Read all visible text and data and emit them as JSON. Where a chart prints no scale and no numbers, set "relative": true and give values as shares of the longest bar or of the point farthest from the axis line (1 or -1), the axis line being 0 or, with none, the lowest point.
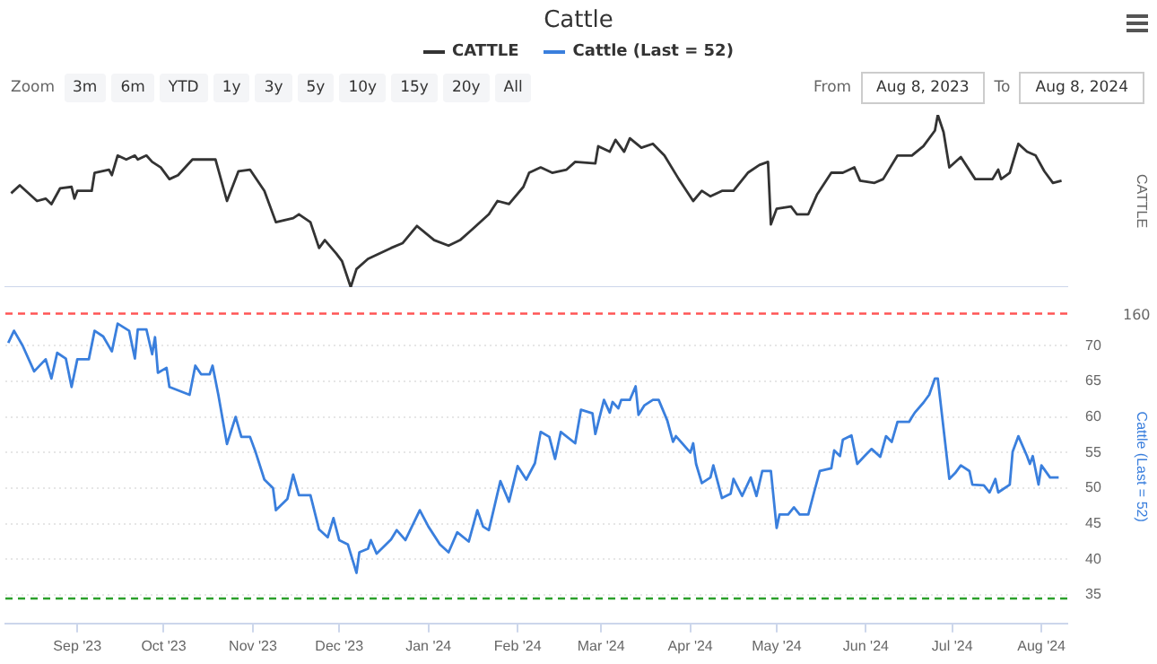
{
  "chart_data": [
    {
      "type": "line",
      "title": "Cattle",
      "legend": "top",
      "relative": true,
      "tick_labels": false,
      "marker": "none",
      "ylabel": "CATTLE",
      "annotations": [
        "Zoom",
        "3m",
        "6m",
        "YTD",
        "1y",
        "3y",
        "5y",
        "10y",
        "15y",
        "20y",
        "All",
        "From",
        "Aug 8, 2023",
        "To",
        "Aug 8, 2024"
      ],
      "xlim": [
        "2023-08-07",
        "2024-08-10"
      ],
      "x": [
        "2023-08-09",
        "2023-08-12",
        "2023-08-18",
        "2023-08-21",
        "2023-08-23",
        "2023-08-26",
        "2023-08-30",
        "2023-08-31",
        "2023-09-01",
        "2023-09-06",
        "2023-09-07",
        "2023-09-12",
        "2023-09-13",
        "2023-09-15",
        "2023-09-18",
        "2023-09-21",
        "2023-09-22",
        "2023-09-25",
        "2023-09-27",
        "2023-09-30",
        "2023-10-03",
        "2023-10-06",
        "2023-10-11",
        "2023-10-19",
        "2023-10-23",
        "2023-10-27",
        "2023-10-31",
        "2023-11-05",
        "2023-11-09",
        "2023-11-15",
        "2023-11-17",
        "2023-11-21",
        "2023-11-24",
        "2023-11-26",
        "2023-11-30",
        "2023-12-02",
        "2023-12-05",
        "2023-12-07",
        "2023-12-11",
        "2023-12-15",
        "2023-12-19",
        "2023-12-23",
        "2023-12-28",
        "2024-01-03",
        "2024-01-08",
        "2024-01-12",
        "2024-01-16",
        "2024-01-22",
        "2024-01-25",
        "2024-01-29",
        "2024-02-03",
        "2024-02-05",
        "2024-02-09",
        "2024-02-13",
        "2024-02-18",
        "2024-02-21",
        "2024-02-28",
        "2024-02-29",
        "2024-03-04",
        "2024-03-06",
        "2024-03-09",
        "2024-03-11",
        "2024-03-15",
        "2024-03-19",
        "2024-03-23",
        "2024-03-28",
        "2024-04-02",
        "2024-04-05",
        "2024-04-08",
        "2024-04-12",
        "2024-04-16",
        "2024-04-21",
        "2024-04-25",
        "2024-04-28",
        "2024-04-29",
        "2024-05-01",
        "2024-05-06",
        "2024-05-08",
        "2024-05-12",
        "2024-05-15",
        "2024-05-20",
        "2024-05-24",
        "2024-05-28",
        "2024-05-30",
        "2024-06-04",
        "2024-06-07",
        "2024-06-12",
        "2024-06-17",
        "2024-06-21",
        "2024-06-25",
        "2024-06-26",
        "2024-06-28",
        "2024-06-30",
        "2024-07-04",
        "2024-07-09",
        "2024-07-15",
        "2024-07-17",
        "2024-07-18",
        "2024-07-21",
        "2024-07-24",
        "2024-07-27",
        "2024-07-30",
        "2024-08-02",
        "2024-08-05",
        "2024-08-08"
      ],
      "series": [
        {
          "name": "CATTLE",
          "color": "#333333",
          "values": [
            0.545,
            0.591,
            0.5,
            0.514,
            0.482,
            0.573,
            0.582,
            0.514,
            0.559,
            0.559,
            0.664,
            0.682,
            0.65,
            0.764,
            0.741,
            0.764,
            0.741,
            0.764,
            0.727,
            0.695,
            0.627,
            0.65,
            0.741,
            0.741,
            0.5,
            0.673,
            0.682,
            0.559,
            0.377,
            0.4,
            0.423,
            0.377,
            0.227,
            0.273,
            0.195,
            0.15,
            0,
            0.105,
            0.164,
            0.195,
            0.227,
            0.255,
            0.355,
            0.273,
            0.241,
            0.273,
            0.332,
            0.423,
            0.5,
            0.482,
            0.582,
            0.664,
            0.695,
            0.664,
            0.682,
            0.727,
            0.718,
            0.818,
            0.786,
            0.855,
            0.786,
            0.864,
            0.809,
            0.832,
            0.764,
            0.627,
            0.5,
            0.559,
            0.527,
            0.559,
            0.559,
            0.664,
            0.709,
            0.727,
            0.364,
            0.455,
            0.468,
            0.423,
            0.423,
            0.536,
            0.664,
            0.664,
            0.695,
            0.618,
            0.605,
            0.627,
            0.764,
            0.764,
            0.818,
            0.909,
            1,
            0.9,
            0.695,
            0.755,
            0.627,
            0.627,
            0.682,
            0.627,
            0.664,
            0.832,
            0.786,
            0.764,
            0.673,
            0.605,
            0.618
          ]
        }
      ]
    },
    {
      "type": "line",
      "legend": "top",
      "marker": "none",
      "ylabel": "Cattle (Last = 52)",
      "grid": "y",
      "annotations": [
        "160"
      ],
      "xlim": [
        "2023-08-07",
        "2024-08-10"
      ],
      "xticks": [
        {
          "value": "2023-09-01",
          "label": "Sep '23"
        },
        {
          "value": "2023-10-01",
          "label": "Oct '23"
        },
        {
          "value": "2023-11-01",
          "label": "Nov '23"
        },
        {
          "value": "2023-12-01",
          "label": "Dec '23"
        },
        {
          "value": "2024-01-01",
          "label": "Jan '24"
        },
        {
          "value": "2024-02-01",
          "label": "Feb '24"
        },
        {
          "value": "2024-03-01",
          "label": "Mar '24"
        },
        {
          "value": "2024-04-01",
          "label": "Apr '24"
        },
        {
          "value": "2024-05-01",
          "label": "May '24"
        },
        {
          "value": "2024-06-01",
          "label": "Jun '24"
        },
        {
          "value": "2024-07-01",
          "label": "Jul '24"
        },
        {
          "value": "2024-08-01",
          "label": "Aug '24"
        }
      ],
      "ylim": [
        31,
        75
      ],
      "yticks": [
        35,
        40,
        45,
        50,
        55,
        60,
        65,
        70
      ],
      "ref_lines": [
        {
          "axis": "y",
          "value": 74.5,
          "color": "#ff5555",
          "line_style": "dashed"
        },
        {
          "axis": "y",
          "value": 34.5,
          "color": "#2ca02c",
          "line_style": "dashed"
        }
      ],
      "x": [
        "2023-08-08",
        "2023-08-10",
        "2023-08-13",
        "2023-08-17",
        "2023-08-21",
        "2023-08-23",
        "2023-08-25",
        "2023-08-28",
        "2023-08-30",
        "2023-09-01",
        "2023-09-05",
        "2023-09-07",
        "2023-09-10",
        "2023-09-13",
        "2023-09-15",
        "2023-09-19",
        "2023-09-21",
        "2023-09-22",
        "2023-09-25",
        "2023-09-27",
        "2023-09-28",
        "2023-09-29",
        "2023-10-02",
        "2023-10-03",
        "2023-10-10",
        "2023-10-12",
        "2023-10-14",
        "2023-10-17",
        "2023-10-18",
        "2023-10-20",
        "2023-10-23",
        "2023-10-26",
        "2023-10-28",
        "2023-10-31",
        "2023-11-02",
        "2023-11-05",
        "2023-11-08",
        "2023-11-09",
        "2023-11-13",
        "2023-11-15",
        "2023-11-17",
        "2023-11-21",
        "2023-11-24",
        "2023-11-27",
        "2023-11-29",
        "2023-12-01",
        "2023-12-04",
        "2023-12-07",
        "2023-12-08",
        "2023-12-11",
        "2023-12-12",
        "2023-12-14",
        "2023-12-19",
        "2023-12-21",
        "2023-12-24",
        "2023-12-29",
        "2024-01-01",
        "2024-01-05",
        "2024-01-08",
        "2024-01-11",
        "2024-01-15",
        "2024-01-18",
        "2024-01-20",
        "2024-01-22",
        "2024-01-26",
        "2024-01-29",
        "2024-02-01",
        "2024-02-04",
        "2024-02-07",
        "2024-02-09",
        "2024-02-12",
        "2024-02-14",
        "2024-02-16",
        "2024-02-21",
        "2024-02-23",
        "2024-02-27",
        "2024-02-28",
        "2024-03-02",
        "2024-03-04",
        "2024-03-05",
        "2024-03-07",
        "2024-03-08",
        "2024-03-11",
        "2024-03-13",
        "2024-03-14",
        "2024-03-16",
        "2024-03-19",
        "2024-03-21",
        "2024-03-24",
        "2024-03-26",
        "2024-03-27",
        "2024-04-01",
        "2024-04-02",
        "2024-04-03",
        "2024-04-05",
        "2024-04-08",
        "2024-04-09",
        "2024-04-12",
        "2024-04-15",
        "2024-04-16",
        "2024-04-19",
        "2024-04-22",
        "2024-04-24",
        "2024-04-26",
        "2024-04-29",
        "2024-05-01",
        "2024-05-02",
        "2024-05-05",
        "2024-05-07",
        "2024-05-09",
        "2024-05-12",
        "2024-05-14",
        "2024-05-16",
        "2024-05-20",
        "2024-05-21",
        "2024-05-23",
        "2024-05-24",
        "2024-05-27",
        "2024-05-29",
        "2024-06-01",
        "2024-06-03",
        "2024-06-06",
        "2024-06-08",
        "2024-06-10",
        "2024-06-12",
        "2024-06-16",
        "2024-06-18",
        "2024-06-21",
        "2024-06-23",
        "2024-06-25",
        "2024-06-26",
        "2024-06-30",
        "2024-07-02",
        "2024-07-04",
        "2024-07-07",
        "2024-07-08",
        "2024-07-12",
        "2024-07-14",
        "2024-07-16",
        "2024-07-17",
        "2024-07-21",
        "2024-07-22",
        "2024-07-24",
        "2024-07-27",
        "2024-07-28",
        "2024-07-29",
        "2024-07-31",
        "2024-08-01",
        "2024-08-04",
        "2024-08-07"
      ],
      "series": [
        {
          "name": "Cattle (Last = 52)",
          "color": "#3a7fdd",
          "values": [
            70.4,
            72.1,
            70,
            66.4,
            68.1,
            65.4,
            69,
            68.2,
            64.2,
            68.1,
            68.1,
            72.1,
            71.3,
            69.2,
            73.1,
            72.1,
            68.2,
            72.3,
            72.3,
            68.8,
            71.2,
            66.2,
            66.9,
            64.2,
            63.1,
            67.2,
            66,
            66,
            67.2,
            63.1,
            56.2,
            60,
            57.2,
            57.2,
            55,
            51.2,
            50,
            46.9,
            48.5,
            51.9,
            49,
            49,
            44.2,
            43.1,
            45.8,
            42.7,
            42.1,
            38.1,
            41,
            41.5,
            42.7,
            40.8,
            42.8,
            44.1,
            42.7,
            46.9,
            44.6,
            42.1,
            41,
            43.8,
            42.5,
            46.9,
            44.6,
            44.1,
            51,
            48.1,
            53.1,
            51.2,
            53.5,
            57.9,
            57.2,
            54.1,
            57.9,
            56.3,
            61,
            60.5,
            57.6,
            62.4,
            60.6,
            62.1,
            61.2,
            62.4,
            62.4,
            64.3,
            60.3,
            61.6,
            62.4,
            62.4,
            59.5,
            56.5,
            57.3,
            55,
            56.3,
            53.4,
            50.7,
            51.5,
            53.2,
            48.6,
            49.2,
            51.3,
            48.9,
            51.5,
            48.9,
            52.4,
            52.4,
            44.4,
            46.3,
            46.3,
            47.3,
            46.3,
            46.3,
            49.4,
            52.4,
            52.8,
            55.3,
            54.5,
            56.8,
            57.4,
            53.4,
            54.7,
            55.5,
            54.4,
            57.3,
            56.5,
            59.3,
            59.3,
            60.6,
            62,
            63.1,
            65.4,
            65.4,
            51.3,
            52.1,
            53.2,
            52.4,
            50.5,
            50.4,
            49.4,
            51.3,
            49.4,
            50.5,
            55.1,
            57.3,
            54.5,
            53.4,
            54.5,
            50.5,
            53.2,
            51.5,
            51.5
          ]
        }
      ]
    }
  ]
}
